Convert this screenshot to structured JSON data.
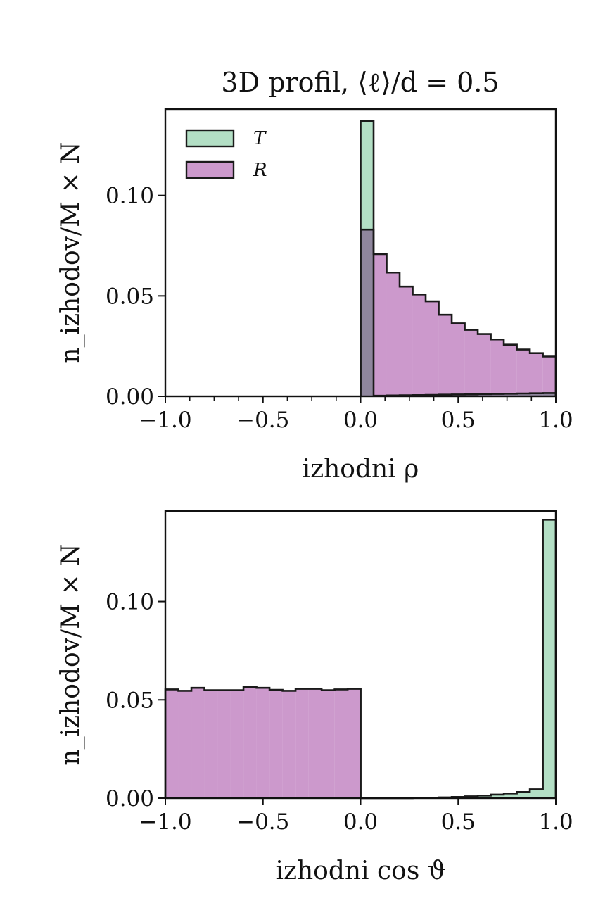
{
  "title": "3D profil, ⟨ℓ⟩/d = 0.5",
  "colors": {
    "T": "#b3dfc5",
    "R": "#cc99cc",
    "edge": "#1a1a1a"
  },
  "chart_data": [
    {
      "type": "bar",
      "histogram": true,
      "xlabel": "izhodni ρ",
      "ylabel": "n_izhodov/M × N",
      "xlim": [
        -1.0,
        1.0
      ],
      "ylim": [
        0,
        0.143
      ],
      "xticks": [
        "−1.0",
        "−0.5",
        "0.0",
        "0.5",
        "1.0"
      ],
      "xtick_values": [
        -1,
        -0.5,
        0,
        0.5,
        1
      ],
      "minor_xticks": true,
      "yticks": [
        "0.00",
        "0.05",
        "0.10"
      ],
      "ytick_values": [
        0,
        0.05,
        0.1
      ],
      "legend": {
        "placement": "top-left",
        "entries": [
          "T",
          "R"
        ]
      },
      "bin_start": 0.0,
      "bin_width": 0.0667,
      "series": [
        {
          "name": "T",
          "values": [
            0.137,
            0.0003,
            0.0004,
            0.0005,
            0.0006,
            0.0007,
            0.0008,
            0.0009,
            0.001,
            0.0011,
            0.0012,
            0.0013,
            0.0014,
            0.0015,
            0.0016
          ]
        },
        {
          "name": "R",
          "values": [
            0.083,
            0.0708,
            0.0616,
            0.0546,
            0.0507,
            0.0473,
            0.0406,
            0.0363,
            0.0331,
            0.031,
            0.0283,
            0.0257,
            0.0233,
            0.0215,
            0.0198
          ]
        }
      ]
    },
    {
      "type": "bar",
      "histogram": true,
      "xlabel": "izhodni cos ϑ",
      "ylabel": "n_izhodov/M × N",
      "xlim": [
        -1.0,
        1.0
      ],
      "ylim": [
        0,
        0.146
      ],
      "xticks": [
        "−1.0",
        "−0.5",
        "0.0",
        "0.5",
        "1.0"
      ],
      "xtick_values": [
        -1,
        -0.5,
        0,
        0.5,
        1
      ],
      "minor_xticks": false,
      "yticks": [
        "0.00",
        "0.05",
        "0.10"
      ],
      "ytick_values": [
        0,
        0.05,
        0.1
      ],
      "series": [
        {
          "name": "T",
          "bin_start": 0.0,
          "bin_width": 0.0667,
          "values": [
            0.0,
            0.0,
            0.0,
            0.0,
            0.0001,
            0.0002,
            0.0004,
            0.0006,
            0.0009,
            0.0013,
            0.0018,
            0.0024,
            0.0031,
            0.0045,
            0.1416
          ]
        },
        {
          "name": "R",
          "bin_start": -1.0,
          "bin_width": 0.0667,
          "values": [
            0.0553,
            0.0546,
            0.0561,
            0.0549,
            0.0549,
            0.0549,
            0.0566,
            0.0561,
            0.0551,
            0.0546,
            0.0556,
            0.0556,
            0.0549,
            0.0553,
            0.0556
          ]
        }
      ]
    }
  ]
}
